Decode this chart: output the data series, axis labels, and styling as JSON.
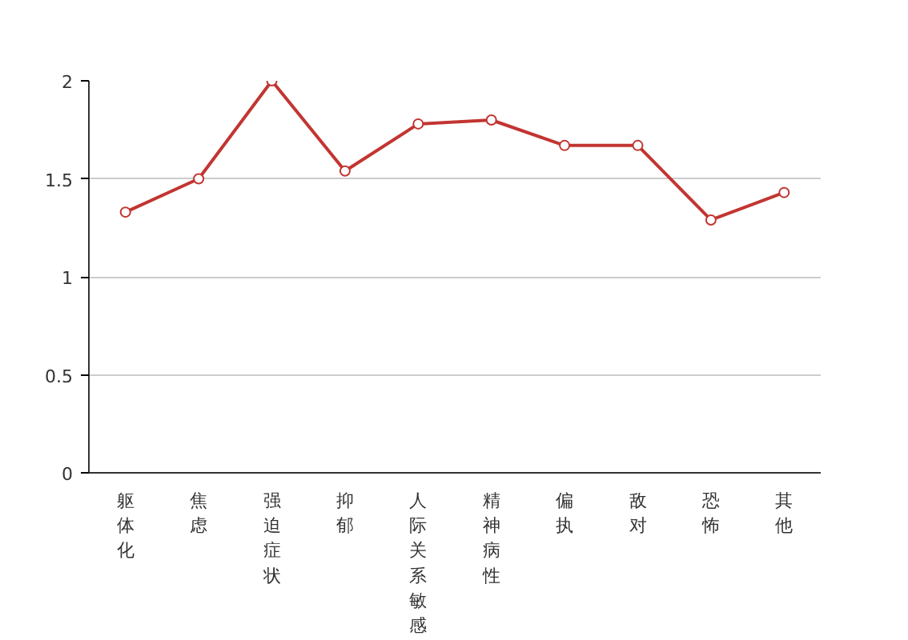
{
  "chart_data": {
    "type": "line",
    "categories": [
      "躯体化",
      "焦虑",
      "强迫症状",
      "抑郁",
      "人际关系敏感",
      "精神病性",
      "偏执",
      "敌对",
      "恐怖",
      "其他"
    ],
    "series": [
      {
        "color": "#c23531",
        "values": [
          1.33,
          1.5,
          2,
          1.54,
          1.78,
          1.8,
          1.67,
          1.67,
          1.29,
          1.43
        ]
      }
    ],
    "ylim": [
      0,
      2
    ],
    "yticks": [
      0,
      0.5,
      1,
      1.5,
      2
    ],
    "grid": "y",
    "marker": "circle",
    "line_style": "solid"
  }
}
